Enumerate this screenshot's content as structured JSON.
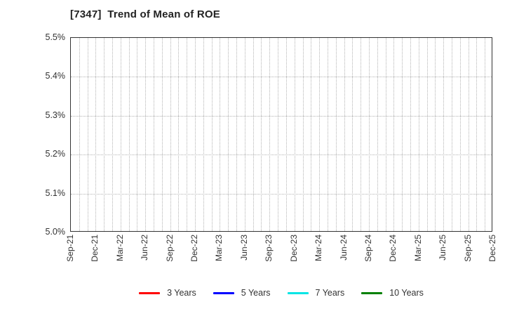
{
  "chart": {
    "title": "[7347]  Trend of Mean of ROE"
  },
  "chart_data": {
    "type": "line",
    "title": "[7347]  Trend of Mean of ROE",
    "x_tick_labels": [
      "Sep-21",
      "Dec-21",
      "Mar-22",
      "Jun-22",
      "Sep-22",
      "Dec-22",
      "Mar-23",
      "Jun-23",
      "Sep-23",
      "Dec-23",
      "Mar-24",
      "Jun-24",
      "Sep-24",
      "Dec-24",
      "Mar-25",
      "Jun-25",
      "Sep-25",
      "Dec-25"
    ],
    "x_label_interval_months": 3,
    "x_total_month_intervals": 51,
    "y_ticks": [
      5.0,
      5.1,
      5.2,
      5.3,
      5.4,
      5.5
    ],
    "y_tick_suffix": "%",
    "ylim": [
      5.0,
      5.5
    ],
    "grid": {
      "style": "dotted",
      "vertical": "monthly",
      "horizontal": "every 0.1%",
      "color": "#b3b3b3"
    },
    "legend_position": "bottom-center",
    "plot_area_empty": true,
    "series": [
      {
        "name": "3 Years",
        "color": "#ff0000",
        "values": []
      },
      {
        "name": "5 Years",
        "color": "#0000ff",
        "values": []
      },
      {
        "name": "7 Years",
        "color": "#00e5e5",
        "values": []
      },
      {
        "name": "10 Years",
        "color": "#008000",
        "values": []
      }
    ]
  }
}
